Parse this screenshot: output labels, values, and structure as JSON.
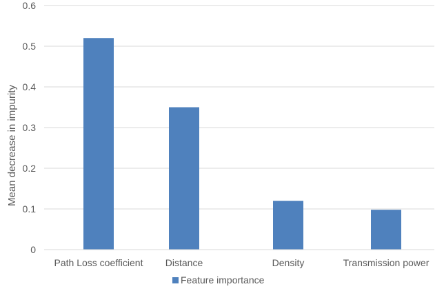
{
  "chart_data": {
    "type": "bar",
    "title": "",
    "xlabel": "",
    "ylabel": "Mean decrease in impurity",
    "ylim": [
      0,
      0.6
    ],
    "yticks": [
      "0",
      "0.1",
      "0.2",
      "0.3",
      "0.4",
      "0.5",
      "0.6"
    ],
    "categories": [
      "Path Loss coefficient",
      "Distance",
      "Density",
      "Transmission power"
    ],
    "series": [
      {
        "name": "Feature importance",
        "values": [
          0.52,
          0.35,
          0.12,
          0.098
        ],
        "color": "#4f81bd"
      }
    ],
    "grid": true,
    "legend_position": "bottom"
  }
}
